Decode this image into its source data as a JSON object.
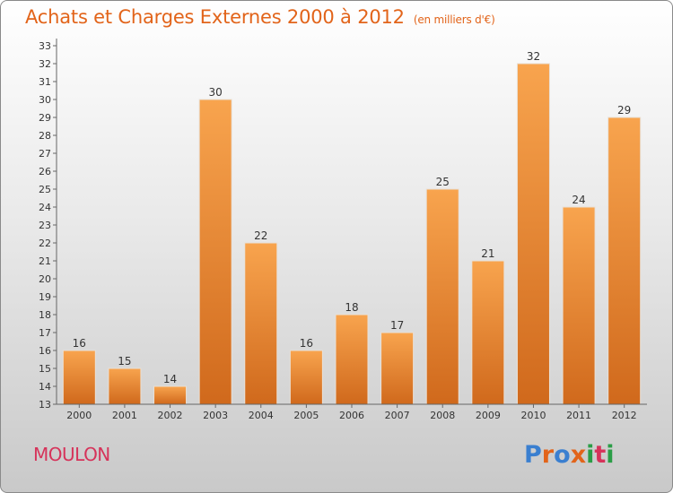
{
  "header": {
    "title": "Achats et Charges Externes 2000 à 2012",
    "unit": "(en milliers d'€)"
  },
  "footer": {
    "commune": "MOULON",
    "logo": "Proxiti",
    "logo_colors": [
      "#3a7fd0",
      "#e2641a",
      "#3a7fd0",
      "#e2641a",
      "#2a9d46",
      "#d6335a",
      "#2a9d46"
    ]
  },
  "colors": {
    "bar_top": "#f8a44e",
    "bar_bottom": "#d0691c",
    "title": "#e2641a",
    "commune": "#d6335a"
  },
  "chart_data": {
    "type": "bar",
    "categories": [
      "2000",
      "2001",
      "2002",
      "2003",
      "2004",
      "2005",
      "2006",
      "2007",
      "2008",
      "2009",
      "2010",
      "2011",
      "2012"
    ],
    "values": [
      16,
      15,
      14,
      30,
      22,
      16,
      18,
      17,
      25,
      21,
      32,
      24,
      29
    ],
    "title": "Achats et Charges Externes 2000 à 2012",
    "ylim": [
      13,
      33
    ],
    "yticks": [
      13,
      14,
      15,
      16,
      17,
      18,
      19,
      20,
      21,
      22,
      23,
      24,
      25,
      26,
      27,
      28,
      29,
      30,
      31,
      32,
      33
    ],
    "grid": false,
    "data_labels": true
  }
}
